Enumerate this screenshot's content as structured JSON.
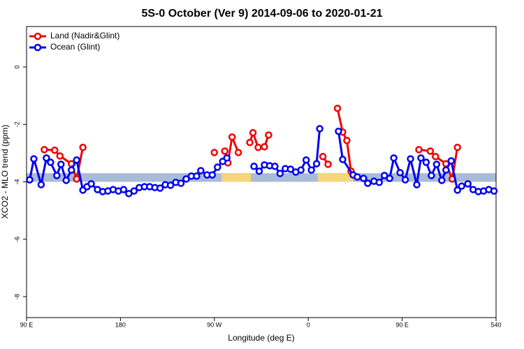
{
  "chart_data": {
    "type": "line",
    "title": "5S-0 October (Ver 9)   2014-09-06 to 2020-01-21",
    "xlabel": "Longitude (deg E)",
    "ylabel": "XCO2 - MLO trend (ppm)",
    "xlim": [
      90,
      540
    ],
    "xticks": [
      {
        "value": 90,
        "label": "90 E"
      },
      180,
      {
        "value": 270,
        "label": "90 W"
      },
      {
        "value": 360,
        "label": "0"
      },
      {
        "value": 450,
        "label": "90 E"
      },
      540
    ],
    "ylim": [
      -8.73,
      1.41
    ],
    "yticks": [
      0,
      -2,
      -4,
      -6,
      -8
    ],
    "legend": "top-left",
    "band": {
      "range": [
        -4.0,
        -3.7
      ],
      "color": "#a8bcd8",
      "spans": [
        [
          277,
          305
        ],
        [
          369,
          403
        ]
      ],
      "span_color": "#f5d67a"
    },
    "series": [
      {
        "name": "Land (Nadir&Glint)",
        "color": "#ee0000",
        "x": [
          107,
          117,
          122,
          133,
          138,
          144,
          null,
          270,
          null,
          280,
          283,
          287,
          293,
          null,
          304,
          307,
          312,
          318,
          322,
          null,
          374,
          379,
          null,
          388,
          393,
          397,
          401,
          null,
          466,
          477,
          482,
          492,
          498,
          503
        ],
        "values": [
          -2.88,
          -2.9,
          -3.1,
          -3.37,
          -3.9,
          -2.8,
          null,
          -2.98,
          null,
          -2.93,
          -3.34,
          -2.44,
          -2.98,
          null,
          -2.63,
          -2.29,
          -2.8,
          -2.78,
          -2.37,
          null,
          -3.12,
          -3.39,
          null,
          -1.44,
          -2.27,
          -2.56,
          -3.63,
          null,
          -2.88,
          -2.93,
          -3.12,
          -3.37,
          -3.9,
          -2.8
        ]
      },
      {
        "name": "Ocean (Glint)",
        "color": "#0000ee",
        "x": [
          93,
          97,
          104,
          109,
          113,
          119,
          123,
          128,
          133,
          138,
          144,
          148,
          152,
          158,
          163,
          168,
          173,
          178,
          183,
          188,
          193,
          198,
          203,
          208,
          213,
          218,
          223,
          228,
          233,
          238,
          243,
          248,
          253,
          257,
          263,
          268,
          273,
          278,
          282,
          null,
          308,
          313,
          318,
          323,
          328,
          333,
          338,
          343,
          348,
          353,
          358,
          363,
          368,
          371,
          null,
          389,
          393,
          403,
          407,
          413,
          417,
          423,
          428,
          433,
          438,
          442,
          448,
          453,
          458,
          464,
          468,
          473,
          478,
          483,
          488,
          492,
          497,
          503,
          507,
          513,
          518,
          523,
          528,
          533,
          538
        ],
        "values": [
          -3.93,
          -3.2,
          -4.1,
          -3.17,
          -3.32,
          -3.78,
          -3.39,
          -3.95,
          -3.59,
          -3.24,
          -4.29,
          -4.17,
          -4.07,
          -4.27,
          -4.34,
          -4.32,
          -4.27,
          -4.32,
          -4.27,
          -4.41,
          -4.32,
          -4.2,
          -4.17,
          -4.17,
          -4.2,
          -4.22,
          -4.1,
          -4.12,
          -4.02,
          -4.05,
          -3.9,
          -3.8,
          -3.8,
          -3.61,
          -3.76,
          -3.76,
          -3.49,
          -3.29,
          -3.17,
          null,
          -3.46,
          -3.63,
          -3.41,
          -3.44,
          -3.46,
          -3.71,
          -3.54,
          -3.56,
          -3.66,
          -3.59,
          -3.24,
          -3.59,
          -3.37,
          -2.15,
          null,
          -2.24,
          -3.22,
          -3.76,
          -3.83,
          -3.88,
          -4.05,
          -3.98,
          -4.02,
          -3.78,
          -3.88,
          -3.17,
          -3.68,
          -3.93,
          -3.2,
          -4.1,
          -3.17,
          -3.32,
          -3.78,
          -3.39,
          -3.95,
          -3.59,
          -3.27,
          -4.29,
          -4.15,
          -4.07,
          -4.27,
          -4.34,
          -4.32,
          -4.27,
          -4.32
        ]
      }
    ]
  }
}
